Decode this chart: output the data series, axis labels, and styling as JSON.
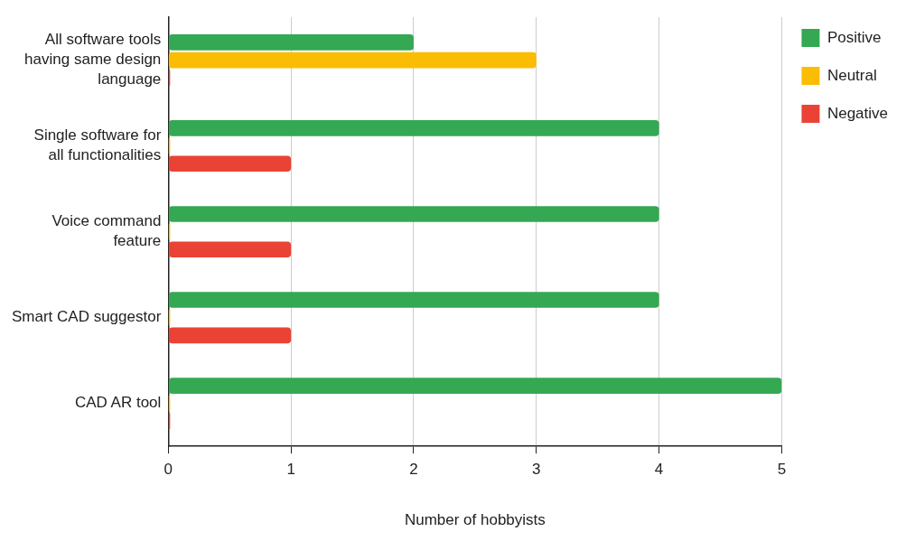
{
  "chart_data": {
    "type": "bar",
    "orientation": "horizontal",
    "xlabel": "Number of hobbyists",
    "categories": [
      "All software tools having same design language",
      "Single software for all functionalities",
      "Voice command feature",
      "Smart CAD suggestor",
      "CAD AR tool"
    ],
    "series": [
      {
        "name": "Positive",
        "color": "#34a853",
        "values": [
          2,
          4,
          4,
          4,
          5
        ]
      },
      {
        "name": "Neutral",
        "color": "#fbbc04",
        "values": [
          3,
          0,
          0,
          0,
          0
        ]
      },
      {
        "name": "Negative",
        "color": "#ea4335",
        "values": [
          0,
          1,
          1,
          1,
          0
        ]
      }
    ],
    "xlim": [
      0,
      5
    ],
    "xticks": [
      0,
      1,
      2,
      3,
      4,
      5
    ],
    "grid": "x",
    "legend": "top right"
  }
}
